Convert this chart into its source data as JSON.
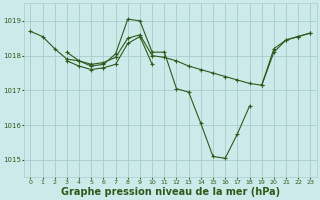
{
  "background_color": "#cceaea",
  "grid_color": "#aacccc",
  "line_color": "#2d5a1b",
  "marker_color": "#2d5a1b",
  "xlabel": "Graphe pression niveau de la mer (hPa)",
  "xlabel_fontsize": 7,
  "xlim": [
    -0.5,
    23.5
  ],
  "ylim": [
    1014.5,
    1019.5
  ],
  "yticks": [
    1015,
    1016,
    1017,
    1018,
    1019
  ],
  "xticks": [
    0,
    1,
    2,
    3,
    4,
    5,
    6,
    7,
    8,
    9,
    10,
    11,
    12,
    13,
    14,
    15,
    16,
    17,
    18,
    19,
    20,
    21,
    22,
    23
  ],
  "series": [
    {
      "x": [
        0,
        1,
        2,
        3,
        4,
        5,
        6,
        7,
        8,
        9,
        10,
        11,
        12,
        13,
        14,
        15,
        16,
        17,
        18,
        19,
        20,
        21,
        22,
        23
      ],
      "y": [
        1018.7,
        1018.55,
        1018.2,
        1017.9,
        1017.85,
        1017.75,
        1017.8,
        1017.95,
        1018.5,
        1018.6,
        1018.0,
        1017.95,
        1017.85,
        1017.7,
        1017.6,
        1017.5,
        1017.4,
        1017.3,
        1017.2,
        1017.15,
        1018.2,
        1018.45,
        1018.55,
        1018.65
      ]
    },
    {
      "x": [
        3,
        4,
        5,
        6,
        7,
        8,
        9,
        10,
        11,
        12,
        13,
        14,
        15,
        16,
        17,
        18
      ],
      "y": [
        1018.1,
        1017.85,
        1017.7,
        1017.75,
        1018.05,
        1019.05,
        1019.0,
        1018.1,
        1018.1,
        1017.05,
        1016.95,
        1016.05,
        1015.1,
        1015.05,
        1015.75,
        1016.55
      ]
    },
    {
      "x": [
        3,
        4,
        5,
        6,
        7,
        8,
        9,
        10
      ],
      "y": [
        1017.85,
        1017.7,
        1017.6,
        1017.65,
        1017.75,
        1018.35,
        1018.55,
        1017.75
      ]
    },
    {
      "x": [
        19,
        20,
        21,
        22,
        23
      ],
      "y": [
        1017.15,
        1018.1,
        1018.45,
        1018.55,
        1018.65
      ]
    }
  ]
}
